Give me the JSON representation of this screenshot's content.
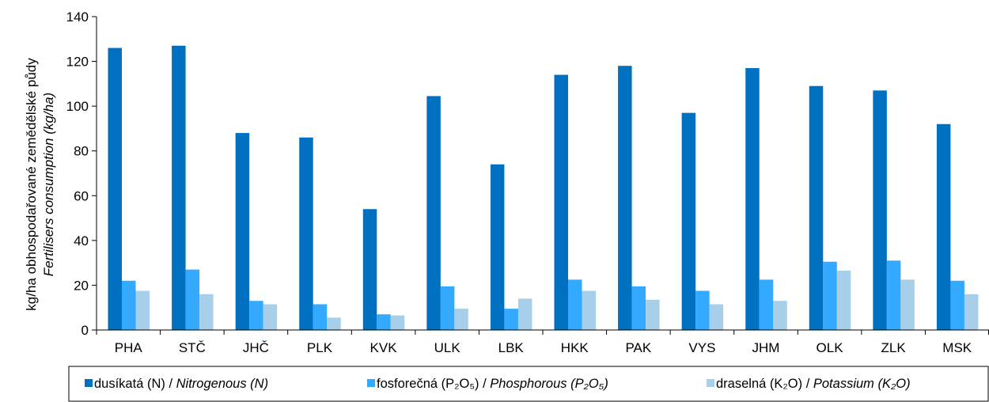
{
  "chart_data": {
    "type": "bar",
    "ylabel_cz": "kg/ha obhospodařované zemědělské půdy",
    "ylabel_en": "Fertilisers consumption (kg/ha)",
    "ylim": [
      0,
      140
    ],
    "yticks": [
      0,
      20,
      40,
      60,
      80,
      100,
      120,
      140
    ],
    "categories": [
      "PHA",
      "STČ",
      "JHČ",
      "PLK",
      "KVK",
      "ULK",
      "LBK",
      "HKK",
      "PAK",
      "VYS",
      "JHM",
      "OLK",
      "ZLK",
      "MSK"
    ],
    "series": [
      {
        "name": "dusíkatá (N) / Nitrogenous (N)",
        "color": "#0070C0",
        "values": [
          126,
          127,
          88,
          86,
          54,
          104.5,
          74,
          114,
          118,
          97,
          117,
          109,
          107,
          92
        ]
      },
      {
        "name": "fosforečná (P2O5) / Phosphorous (P2O5)",
        "color": "#33A9FF",
        "values": [
          22,
          27,
          13,
          11.5,
          7,
          19.5,
          9.5,
          22.5,
          19.5,
          17.5,
          22.5,
          30.5,
          31,
          22
        ]
      },
      {
        "name": "draselná (K2O) / Potassium (K2O)",
        "color": "#A8CFEA",
        "values": [
          17.5,
          16,
          11.5,
          5.5,
          6.5,
          9.5,
          14,
          17.5,
          13.5,
          11.5,
          13,
          26.5,
          22.5,
          16
        ]
      }
    ],
    "legend": {
      "position": "bottom",
      "items": [
        {
          "cz": "dusíkatá (N) / ",
          "en": "Nitrogenous (N)"
        },
        {
          "cz": "fosforečná (P₂O₅) / ",
          "en": "Phosphorous (P₂O₅)"
        },
        {
          "cz": "draselná (K₂O) / ",
          "en": "Potassium (K₂O)"
        }
      ]
    },
    "grid": false
  }
}
